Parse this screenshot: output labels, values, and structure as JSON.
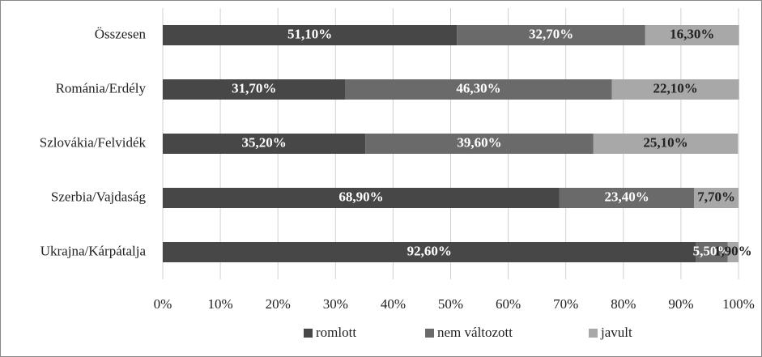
{
  "chart_data": {
    "type": "stacked_barh",
    "categories": [
      "Összesen",
      "Románia/Erdély",
      "Szlovákia/Felvidék",
      "Szerbia/Vajdaság",
      "Ukrajna/Kárpátalja"
    ],
    "series": [
      {
        "name": "romlott",
        "color": "#474747",
        "label_color": "#ffffff",
        "values": [
          51.1,
          31.7,
          35.2,
          68.9,
          92.6
        ],
        "value_labels": [
          "51,10%",
          "31,70%",
          "35,20%",
          "68,90%",
          "92,60%"
        ]
      },
      {
        "name": "nem változott",
        "color": "#6a6a6a",
        "label_color": "#ffffff",
        "values": [
          32.7,
          46.3,
          39.6,
          23.4,
          5.5
        ],
        "value_labels": [
          "32,70%",
          "46,30%",
          "39,60%",
          "23,40%",
          "5,50%"
        ]
      },
      {
        "name": "javult",
        "color": "#a8a8a8",
        "label_color": "#222222",
        "values": [
          16.3,
          22.1,
          25.1,
          7.7,
          1.9
        ],
        "value_labels": [
          "16,30%",
          "22,10%",
          "25,10%",
          "7,70%",
          "1,90%"
        ]
      }
    ],
    "xlim": [
      0,
      100
    ],
    "xticks": [
      {
        "value": 0,
        "label": "0%"
      },
      {
        "value": 10,
        "label": "10%"
      },
      {
        "value": 20,
        "label": "20%"
      },
      {
        "value": 30,
        "label": "30%"
      },
      {
        "value": 40,
        "label": "40%"
      },
      {
        "value": 50,
        "label": "50%"
      },
      {
        "value": 60,
        "label": "60%"
      },
      {
        "value": 70,
        "label": "70%"
      },
      {
        "value": 80,
        "label": "80%"
      },
      {
        "value": 90,
        "label": "90%"
      },
      {
        "value": 100,
        "label": "100%"
      }
    ],
    "grid": true,
    "legend": "bottom"
  }
}
